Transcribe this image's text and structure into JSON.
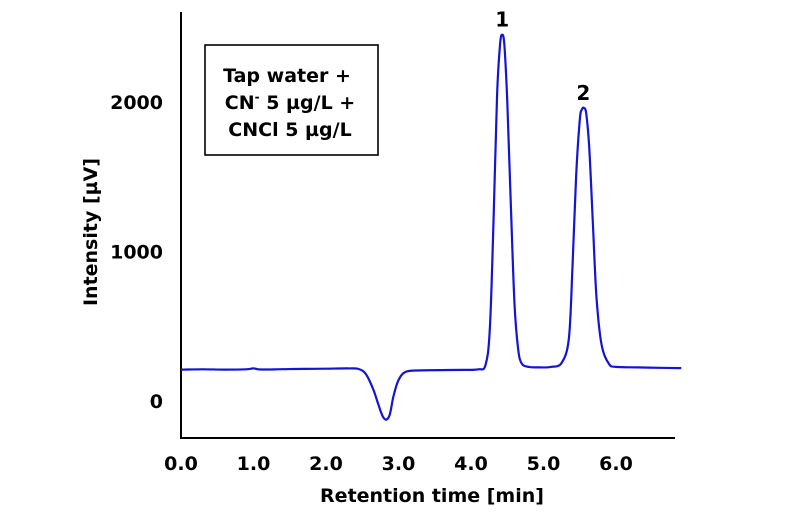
{
  "chart_data": {
    "type": "line",
    "title": "",
    "xlabel": "Retention time [min]",
    "ylabel": "Intensity [µV]",
    "xlim": [
      0.0,
      6.9
    ],
    "ylim": [
      -250,
      2500
    ],
    "x_tick_labels": [
      "0.0",
      "1.0",
      "2.0",
      "3.0",
      "4.0",
      "5.0",
      "6.0"
    ],
    "x_ticks": [
      0,
      1,
      2,
      3,
      4,
      5,
      6
    ],
    "y_tick_labels": [
      "0",
      "1000",
      "2000"
    ],
    "y_ticks": [
      0,
      1000,
      2000
    ],
    "grid": false,
    "legend": {
      "placement": "top-left",
      "lines": [
        {
          "text": "Tap water +"
        },
        {
          "text": "CN",
          "sup": "-",
          "rest": " 5 µg/L +"
        },
        {
          "text": "CNCl 5 µg/L"
        }
      ]
    },
    "annotations": [
      {
        "text": "1",
        "x": 4.43,
        "y": 2450
      },
      {
        "text": "2",
        "x": 5.55,
        "y": 1960
      }
    ],
    "series": [
      {
        "color": "#1414d2",
        "x": [
          0.0,
          0.3,
          0.6,
          0.9,
          1.0,
          1.1,
          1.4,
          1.7,
          2.0,
          2.3,
          2.45,
          2.55,
          2.65,
          2.72,
          2.78,
          2.83,
          2.88,
          2.93,
          3.0,
          3.1,
          3.3,
          3.6,
          3.9,
          4.1,
          4.2,
          4.26,
          4.31,
          4.36,
          4.4,
          4.43,
          4.46,
          4.5,
          4.55,
          4.6,
          4.65,
          4.7,
          4.8,
          4.95,
          5.1,
          5.25,
          5.35,
          5.4,
          5.45,
          5.5,
          5.53,
          5.56,
          5.59,
          5.63,
          5.68,
          5.73,
          5.8,
          5.9,
          6.0,
          6.3,
          6.6,
          6.9
        ],
        "y": [
          210,
          212,
          210,
          212,
          218,
          211,
          213,
          215,
          216,
          218,
          214,
          180,
          80,
          -20,
          -100,
          -125,
          -90,
          30,
          140,
          195,
          205,
          207,
          208,
          212,
          240,
          480,
          1200,
          2050,
          2380,
          2450,
          2380,
          2000,
          1300,
          650,
          350,
          250,
          228,
          225,
          228,
          255,
          420,
          900,
          1500,
          1880,
          1950,
          1960,
          1920,
          1700,
          1200,
          700,
          380,
          250,
          228,
          225,
          222,
          220
        ]
      }
    ]
  }
}
